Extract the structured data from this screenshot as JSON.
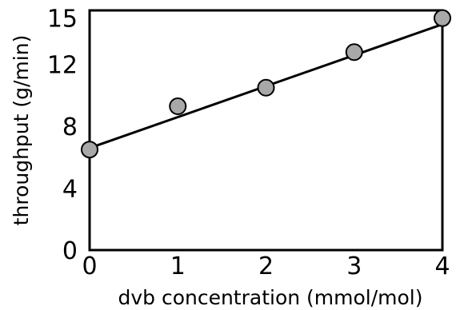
{
  "chart_data": {
    "type": "scatter",
    "xlabel": "dvb concentration (mmol/mol)",
    "ylabel": "throughput (g/min)",
    "xlim": [
      0,
      4
    ],
    "ylim": [
      0,
      15.5
    ],
    "x_ticks": [
      "0",
      "1",
      "2",
      "3",
      "4"
    ],
    "y_ticks": [
      "0",
      "4",
      "8",
      "12",
      "15"
    ],
    "grid": false,
    "series": [
      {
        "x": [
          0,
          1,
          2,
          3,
          4
        ],
        "y": [
          6.5,
          9.3,
          10.5,
          12.8,
          15.0
        ],
        "color": "#a8a8a8"
      }
    ],
    "fit_line": {
      "x": [
        0,
        4
      ],
      "y": [
        6.6,
        14.6
      ],
      "color": "#000000"
    }
  }
}
